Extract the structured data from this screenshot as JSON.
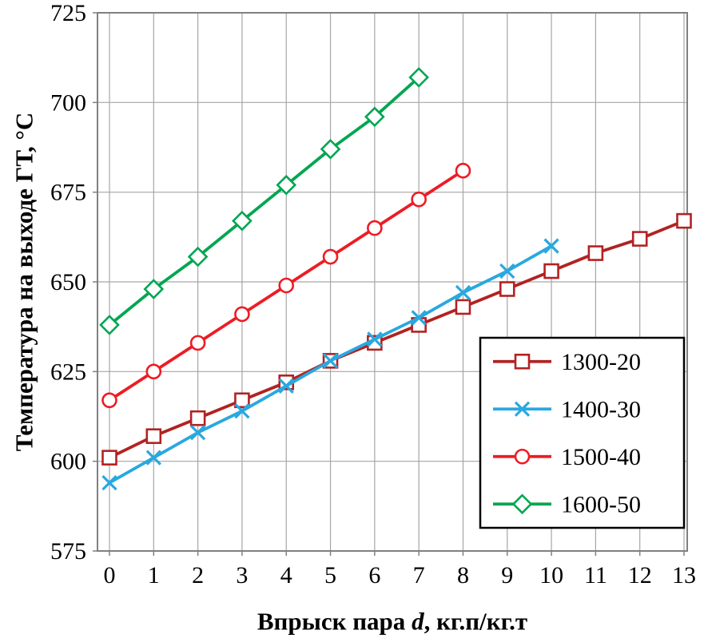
{
  "chart_data": {
    "type": "line",
    "title": "",
    "xlabel": "Впрыск пара d, кг.п/кг.т",
    "xlabel_parts": {
      "prefix": "Впрыск пара ",
      "variable": "d",
      "suffix": ", кг.п/кг.т"
    },
    "ylabel": "Температура на выходе ГТ, °С",
    "xlim": [
      0,
      13
    ],
    "ylim": [
      575,
      725
    ],
    "x_ticks": [
      0,
      1,
      2,
      3,
      4,
      5,
      6,
      7,
      8,
      9,
      10,
      11,
      12,
      13
    ],
    "y_ticks": [
      575,
      600,
      625,
      650,
      675,
      700,
      725
    ],
    "grid": true,
    "legend_position": "inside-right",
    "colors": {
      "background": "#ffffff",
      "grid": "#a6a6a6",
      "plot_border": "#808080",
      "legend_border": "#000000",
      "text": "#000000",
      "marker_fill": "#ffffff"
    },
    "series": [
      {
        "name": "1300-20",
        "color": "#b22222",
        "marker": "square",
        "x": [
          0,
          1,
          2,
          3,
          4,
          5,
          6,
          7,
          8,
          9,
          10,
          11,
          12,
          13
        ],
        "values": [
          601,
          607,
          612,
          617,
          622,
          628,
          633,
          638,
          643,
          648,
          653,
          658,
          662,
          667
        ]
      },
      {
        "name": "1400-30",
        "color": "#29a8e0",
        "marker": "x",
        "x": [
          0,
          1,
          2,
          3,
          4,
          5,
          6,
          7,
          8,
          9,
          10
        ],
        "values": [
          594,
          601,
          608,
          614,
          621,
          628,
          634,
          640,
          647,
          653,
          660
        ]
      },
      {
        "name": "1500-40",
        "color": "#ed1c24",
        "marker": "circle",
        "x": [
          0,
          1,
          2,
          3,
          4,
          5,
          6,
          7,
          8
        ],
        "values": [
          617,
          625,
          633,
          641,
          649,
          657,
          665,
          673,
          681
        ]
      },
      {
        "name": "1600-50",
        "color": "#00a651",
        "marker": "diamond",
        "x": [
          0,
          1,
          2,
          3,
          4,
          5,
          6,
          7
        ],
        "values": [
          638,
          648,
          657,
          667,
          677,
          687,
          696,
          707
        ]
      }
    ]
  }
}
